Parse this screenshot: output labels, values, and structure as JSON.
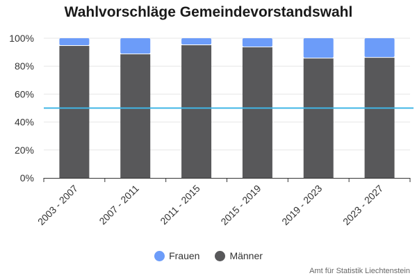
{
  "title": "Wahlvorschläge Gemeindevorstandswahl",
  "credits": "Amt für Statistik Liechtenstein",
  "colors": {
    "frauen": "#6c9cf9",
    "maenner": "#58585a",
    "reference_line": "#41b6e6",
    "grid": "#e6e6e6",
    "axis": "#333333"
  },
  "legend": {
    "frauen": "Frauen",
    "maenner": "Männer"
  },
  "chart_data": {
    "type": "bar",
    "stacked": true,
    "normalized": "percent",
    "title": "Wahlvorschläge Gemeindevorstandswahl",
    "categories": [
      "2003 - 2007",
      "2007 - 2011",
      "2011 - 2015",
      "2015 - 2019",
      "2019 - 2023",
      "2023 - 2027"
    ],
    "series": [
      {
        "name": "Frauen",
        "values": [
          5.5,
          11.5,
          5,
          6.5,
          14.5,
          14
        ]
      },
      {
        "name": "Männer",
        "values": [
          94.5,
          88.5,
          95,
          93.5,
          85.5,
          86
        ]
      }
    ],
    "ylim": [
      0,
      100
    ],
    "y_ticks": [
      "0%",
      "20%",
      "40%",
      "60%",
      "80%",
      "100%"
    ],
    "y_tick_values": [
      0,
      20,
      40,
      60,
      80,
      100
    ],
    "reference_line": 50,
    "grid": true,
    "legend_position": "bottom",
    "xlabel": "",
    "ylabel": ""
  }
}
